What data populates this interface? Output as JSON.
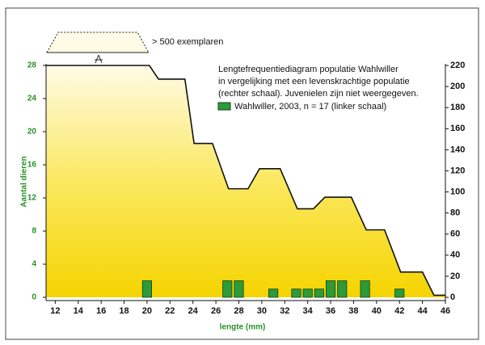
{
  "chart_data": {
    "type": "bar",
    "title": [
      "Lengtefrequentiediagram populatie Wahlwiller",
      "in vergelijking met een levenskrachtige populatie",
      "(rechter schaal). Juvenielen zijn niet weergegeven."
    ],
    "annotation": "> 500 exemplaren",
    "xlabel": "lengte (mm)",
    "ylabel": "Aantal dieren",
    "xlim": [
      11.2,
      46
    ],
    "xticks": [
      12,
      14,
      16,
      18,
      20,
      22,
      24,
      26,
      28,
      30,
      32,
      34,
      36,
      38,
      40,
      42,
      44,
      46
    ],
    "ylim": [
      0,
      28
    ],
    "yticks": [
      0,
      4,
      8,
      12,
      16,
      20,
      24,
      28
    ],
    "y2lim": [
      0,
      220
    ],
    "y2ticks": [
      0,
      20,
      40,
      60,
      80,
      100,
      120,
      140,
      160,
      180,
      200,
      220
    ],
    "series": [
      {
        "name": "Wahlwiller, 2003, n = 17 (linker schaal)",
        "type": "bar",
        "color": "#2e9a3a",
        "x": [
          20,
          27,
          28,
          31,
          33,
          34,
          35,
          36,
          37,
          39,
          42
        ],
        "values": [
          2,
          2,
          2,
          1,
          1,
          1,
          1,
          2,
          2,
          2,
          1
        ]
      },
      {
        "type": "area",
        "axis": "y2",
        "color": "#f5d800",
        "x": [
          11.2,
          20.2,
          21,
          23.3,
          24.1,
          25.7,
          27.1,
          28.8,
          29.8,
          31.6,
          33.1,
          34.5,
          35.5,
          37.8,
          39.1,
          40.7,
          42.1,
          44,
          45,
          46
        ],
        "values": [
          220,
          220,
          207,
          207,
          146,
          146,
          103,
          103,
          122,
          122,
          84,
          84,
          95,
          95,
          64,
          64,
          24,
          24,
          2,
          2
        ]
      }
    ]
  }
}
